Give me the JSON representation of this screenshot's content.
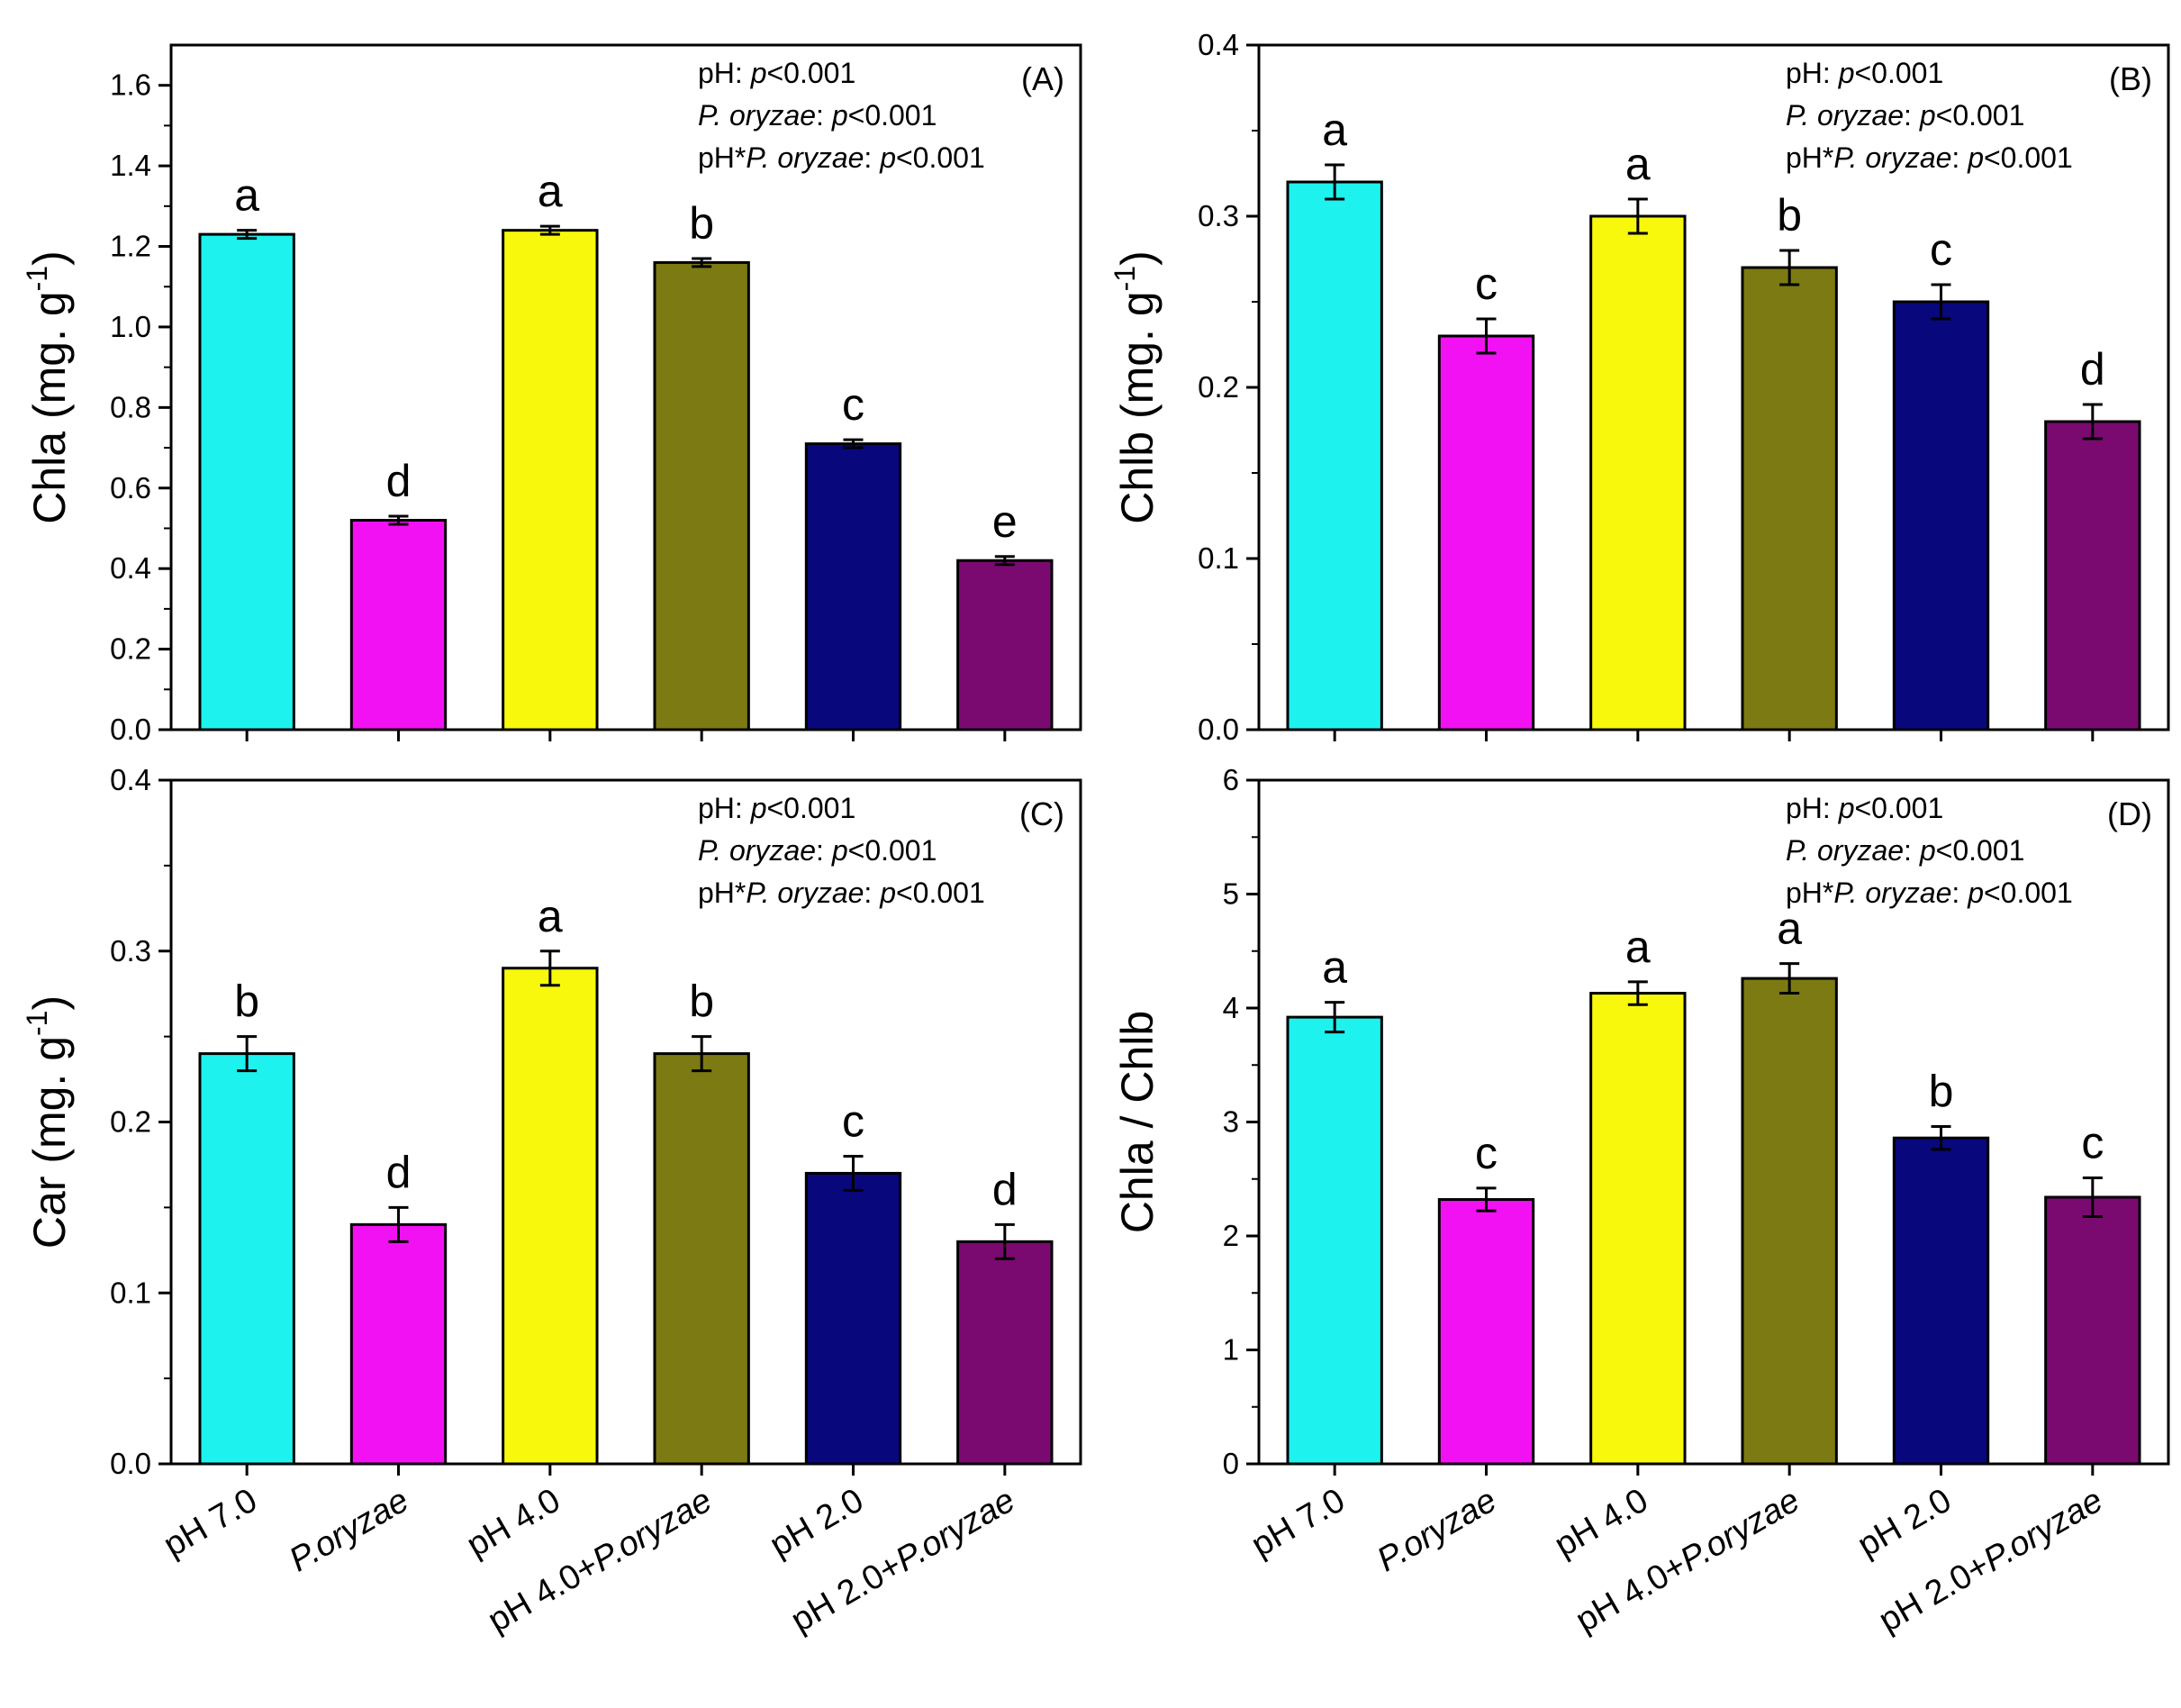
{
  "colors": {
    "pH 7.0": "#1ef2ee",
    "P.oryzae": "#f211f2",
    "pH 4.0": "#f8f80c",
    "pH 4.0+P.oryzae": "#7c7a12",
    "pH 2.0": "#08087c",
    "pH 2.0+P.oryzae": "#7a0a70"
  },
  "chart_data": [
    {
      "type": "bar",
      "panel_label": "(A)",
      "ylabel": "Chla (mg. g",
      "ylabel_sup": "-1",
      "ylabel_close": ")",
      "ylim": [
        0,
        1.7
      ],
      "yticks": [
        "0.0",
        "0.2",
        "0.4",
        "0.6",
        "0.8",
        "1.0",
        "1.2",
        "1.4",
        "1.6"
      ],
      "categories": [
        "pH 7.0",
        "P.oryzae",
        "pH 4.0",
        "pH 4.0+P.oryzae",
        "pH 2.0",
        "pH 2.0+P.oryzae"
      ],
      "values": [
        1.23,
        0.52,
        1.24,
        1.16,
        0.71,
        0.42
      ],
      "errors": [
        0.01,
        0.01,
        0.01,
        0.01,
        0.01,
        0.01
      ],
      "letters": [
        "a",
        "d",
        "a",
        "b",
        "c",
        "e"
      ],
      "stats": [
        "pH: p<0.001",
        "P. oryzae: p<0.001",
        "pH*P. oryzae: p<0.001"
      ]
    },
    {
      "type": "bar",
      "panel_label": "(B)",
      "ylabel": "Chlb (mg. g",
      "ylabel_sup": "-1",
      "ylabel_close": ")",
      "ylim": [
        0,
        0.4
      ],
      "yticks": [
        "0.0",
        "0.1",
        "0.2",
        "0.3",
        "0.4"
      ],
      "categories": [
        "pH 7.0",
        "P.oryzae",
        "pH 4.0",
        "pH 4.0+P.oryzae",
        "pH 2.0",
        "pH 2.0+P.oryzae"
      ],
      "values": [
        0.32,
        0.23,
        0.3,
        0.27,
        0.25,
        0.18
      ],
      "errors": [
        0.01,
        0.01,
        0.01,
        0.01,
        0.01,
        0.01
      ],
      "letters": [
        "a",
        "c",
        "a",
        "b",
        "c",
        "d"
      ],
      "stats": [
        "pH: p<0.001",
        "P. oryzae: p<0.001",
        "pH*P. oryzae: p<0.001"
      ]
    },
    {
      "type": "bar",
      "panel_label": "(C)",
      "ylabel": "Car (mg. g",
      "ylabel_sup": "-1",
      "ylabel_close": ")",
      "ylim": [
        0,
        0.4
      ],
      "yticks": [
        "0.0",
        "0.1",
        "0.2",
        "0.3",
        "0.4"
      ],
      "categories": [
        "pH 7.0",
        "P.oryzae",
        "pH 4.0",
        "pH 4.0+P.oryzae",
        "pH 2.0",
        "pH 2.0+P.oryzae"
      ],
      "values": [
        0.24,
        0.14,
        0.29,
        0.24,
        0.17,
        0.13
      ],
      "errors": [
        0.01,
        0.01,
        0.01,
        0.01,
        0.01,
        0.01
      ],
      "letters": [
        "b",
        "d",
        "a",
        "b",
        "c",
        "d"
      ],
      "stats": [
        "pH: p<0.001",
        "P. oryzae: p<0.001",
        "pH*P. oryzae: p<0.001"
      ]
    },
    {
      "type": "bar",
      "panel_label": "(D)",
      "ylabel": "Chla / Chlb",
      "ylabel_sup": "",
      "ylabel_close": "",
      "ylim": [
        0,
        6
      ],
      "yticks": [
        "0",
        "1",
        "2",
        "3",
        "4",
        "5",
        "6"
      ],
      "categories": [
        "pH 7.0",
        "P.oryzae",
        "pH 4.0",
        "pH 4.0+P.oryzae",
        "pH 2.0",
        "pH 2.0+P.oryzae"
      ],
      "values": [
        3.92,
        2.32,
        4.13,
        4.26,
        2.86,
        2.34
      ],
      "errors": [
        0.13,
        0.1,
        0.1,
        0.13,
        0.1,
        0.17
      ],
      "letters": [
        "a",
        "c",
        "a",
        "a",
        "b",
        "c"
      ],
      "stats": [
        "pH: p<0.001",
        "P. oryzae: p<0.001",
        "pH*P. oryzae: p<0.001"
      ]
    }
  ]
}
